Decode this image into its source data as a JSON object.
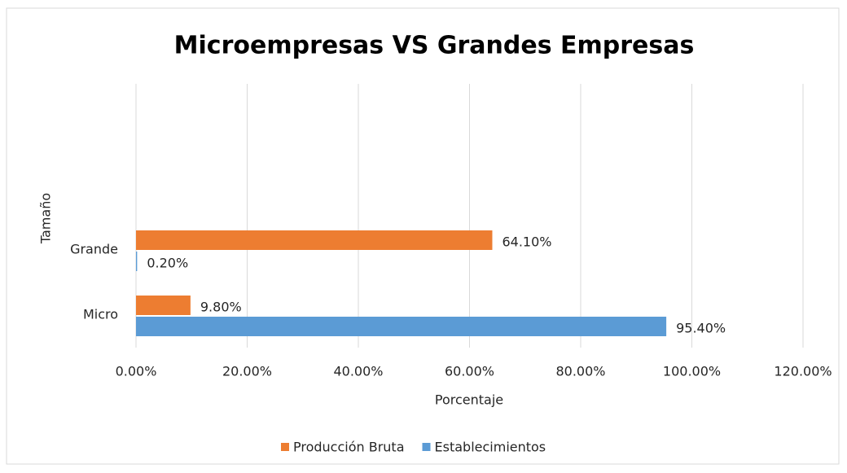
{
  "chart_data": {
    "type": "hbar",
    "title": "Microempresas VS Grandes Empresas",
    "x_label": "Porcentaje",
    "y_label": "Tamaño",
    "categories": [
      "Micro",
      "Grande"
    ],
    "series": [
      {
        "name": "Producción Bruta",
        "color": "#ed7d31",
        "values": [
          9.8,
          64.1
        ],
        "value_labels": [
          "9.80%",
          "64.10%"
        ]
      },
      {
        "name": "Establecimientos",
        "color": "#5b9bd5",
        "values": [
          95.4,
          0.2
        ],
        "value_labels": [
          "95.40%",
          "0.20%"
        ]
      }
    ],
    "xlim": [
      0,
      120
    ],
    "xticks": [
      {
        "value": 0,
        "label": "0.00%"
      },
      {
        "value": 20,
        "label": "20.00%"
      },
      {
        "value": 40,
        "label": "40.00%"
      },
      {
        "value": 60,
        "label": "60.00%"
      },
      {
        "value": 80,
        "label": "80.00%"
      },
      {
        "value": 100,
        "label": "100.00%"
      },
      {
        "value": 120,
        "label": "120.00%"
      }
    ],
    "grid": true,
    "legend": "bottom"
  }
}
